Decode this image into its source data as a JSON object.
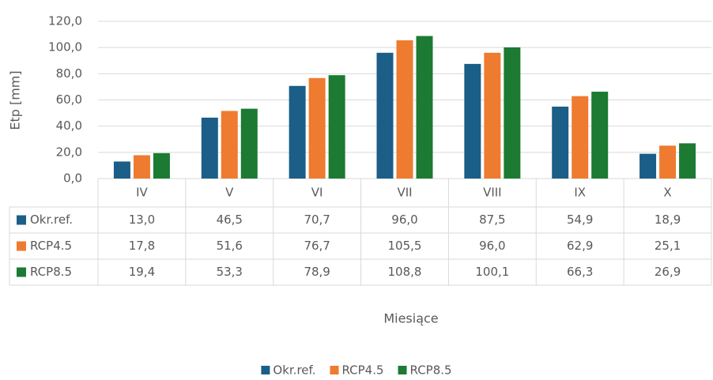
{
  "chart_data": {
    "type": "bar",
    "y_label": "Etp [mm]",
    "x_label": "Miesiące",
    "categories": [
      "IV",
      "V",
      "VI",
      "VII",
      "VIII",
      "IX",
      "X"
    ],
    "series": [
      {
        "name": "Okr.ref.",
        "color": "#1b5e87",
        "values": [
          13.0,
          46.5,
          70.7,
          96.0,
          87.5,
          54.9,
          18.9
        ],
        "value_labels": [
          "13,0",
          "46,5",
          "70,7",
          "96,0",
          "87,5",
          "54,9",
          "18,9"
        ]
      },
      {
        "name": "RCP4.5",
        "color": "#ee7b30",
        "values": [
          17.8,
          51.6,
          76.7,
          105.5,
          96.0,
          62.9,
          25.1
        ],
        "value_labels": [
          "17,8",
          "51,6",
          "76,7",
          "105,5",
          "96,0",
          "62,9",
          "25,1"
        ]
      },
      {
        "name": "RCP8.5",
        "color": "#1c7a33",
        "values": [
          19.4,
          53.3,
          78.9,
          108.8,
          100.1,
          66.3,
          26.9
        ],
        "value_labels": [
          "19,4",
          "53,3",
          "78,9",
          "108,8",
          "100,1",
          "66,3",
          "26,9"
        ]
      }
    ],
    "ylim": [
      0,
      120
    ],
    "yticks": [
      {
        "value": 0,
        "label": "0,0"
      },
      {
        "value": 20,
        "label": "20,0"
      },
      {
        "value": 40,
        "label": "40,0"
      },
      {
        "value": 60,
        "label": "60,0"
      },
      {
        "value": 80,
        "label": "80,0"
      },
      {
        "value": 100,
        "label": "100,0"
      },
      {
        "value": 120,
        "label": "120,0"
      }
    ],
    "grid": true,
    "legend": "bottom"
  }
}
